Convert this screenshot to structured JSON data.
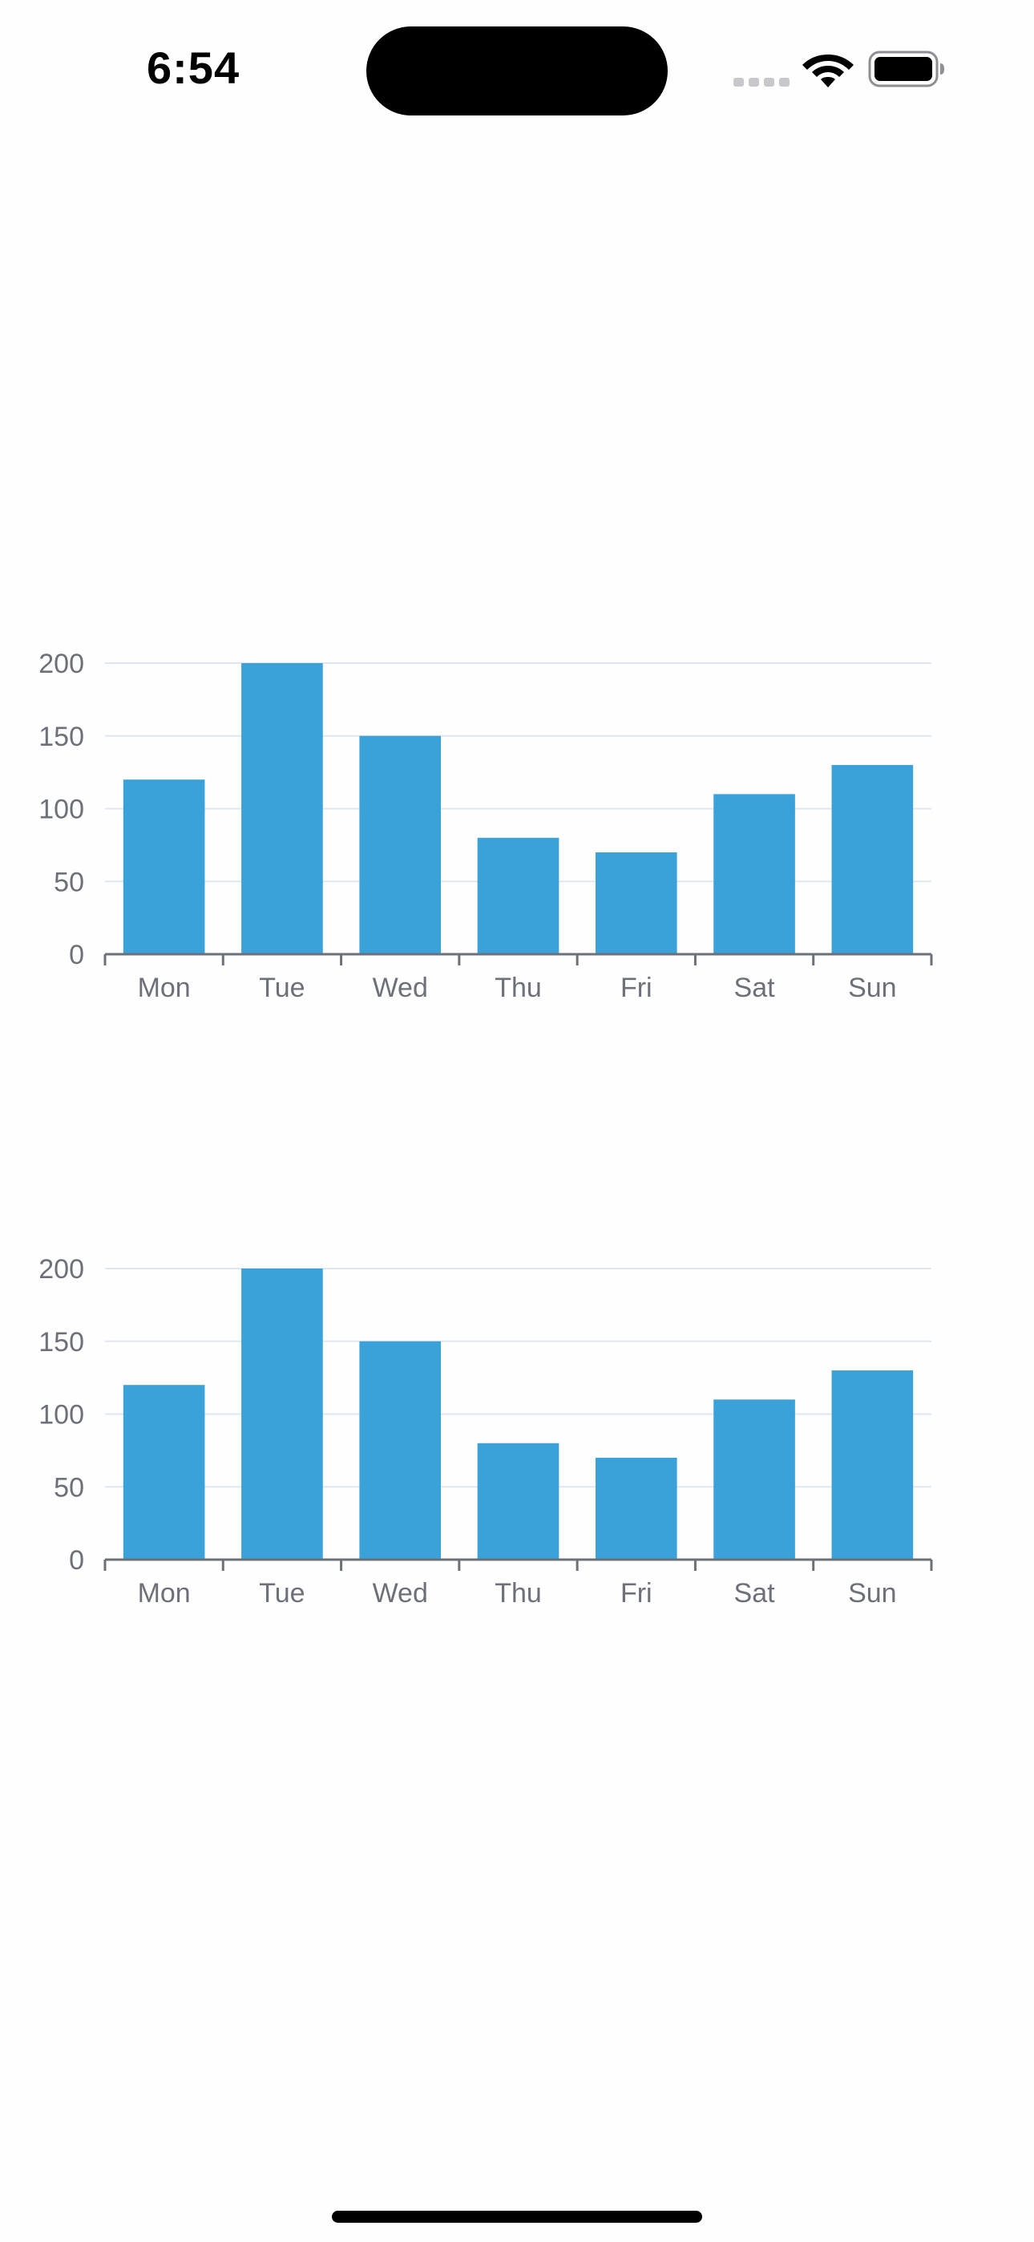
{
  "status_bar": {
    "time": "6:54"
  },
  "colors": {
    "bar": "#3aa1d9",
    "grid": "#e0e6f1",
    "axis": "#6e7079",
    "label": "#6e7079"
  },
  "chart_data": [
    {
      "type": "bar",
      "categories": [
        "Mon",
        "Tue",
        "Wed",
        "Thu",
        "Fri",
        "Sat",
        "Sun"
      ],
      "values": [
        120,
        200,
        150,
        80,
        70,
        110,
        130
      ],
      "yticks": [
        "0",
        "50",
        "100",
        "150",
        "200"
      ],
      "ylim": [
        0,
        200
      ],
      "title": "",
      "xlabel": "",
      "ylabel": "",
      "grid": true,
      "legend": "none"
    },
    {
      "type": "bar",
      "categories": [
        "Mon",
        "Tue",
        "Wed",
        "Thu",
        "Fri",
        "Sat",
        "Sun"
      ],
      "values": [
        120,
        200,
        150,
        80,
        70,
        110,
        130
      ],
      "yticks": [
        "0",
        "50",
        "100",
        "150",
        "200"
      ],
      "ylim": [
        0,
        200
      ],
      "title": "",
      "xlabel": "",
      "ylabel": "",
      "grid": true,
      "legend": "none"
    }
  ]
}
